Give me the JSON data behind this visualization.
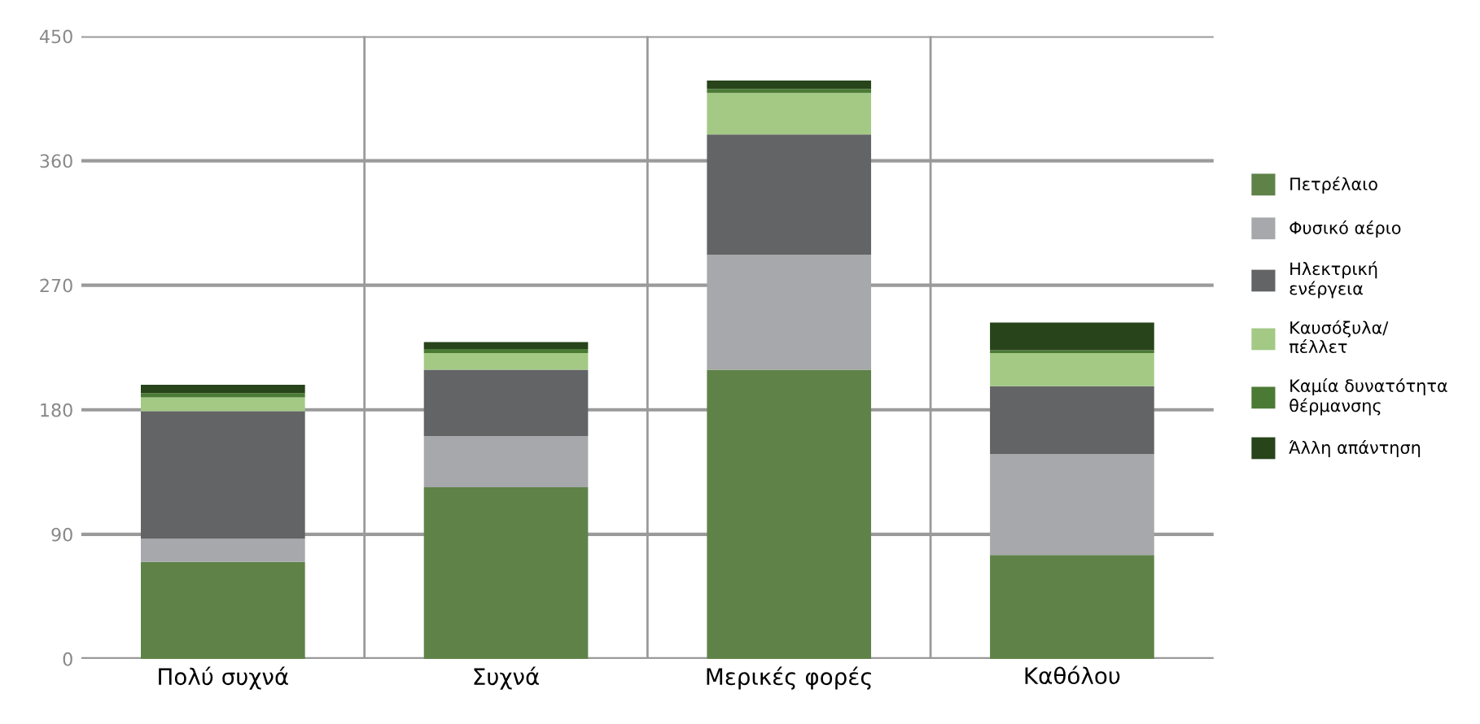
{
  "chart_data": {
    "type": "bar",
    "stacked": true,
    "categories": [
      "Πολύ συχνά",
      "Συχνά",
      "Μερικές φορές",
      "Καθόλου"
    ],
    "series": [
      {
        "name": "Πετρέλαιο",
        "color": "#5f8248",
        "values": [
          70,
          124,
          209,
          75
        ]
      },
      {
        "name": "Φυσικό αέριο",
        "color": "#a6a8ab",
        "values": [
          17,
          37,
          83,
          73
        ]
      },
      {
        "name": "Ηλεκτρική\nενέργεια",
        "color": "#636466",
        "values": [
          92,
          48,
          87,
          49
        ]
      },
      {
        "name": "Καυσόξυλα/\nπέλλετ",
        "color": "#a3c985",
        "values": [
          10,
          12,
          30,
          24
        ]
      },
      {
        "name": "Καμία δυνατότητα\nθέρμανσης",
        "color": "#4b7a35",
        "values": [
          3,
          3,
          3,
          2
        ]
      },
      {
        "name": "Άλλη απάντηση",
        "color": "#27441a",
        "values": [
          6,
          5,
          6,
          20
        ]
      }
    ],
    "ylim": [
      0,
      450
    ],
    "yticks": [
      0,
      90,
      180,
      270,
      360,
      450
    ],
    "grid": "y",
    "legend": "right"
  }
}
